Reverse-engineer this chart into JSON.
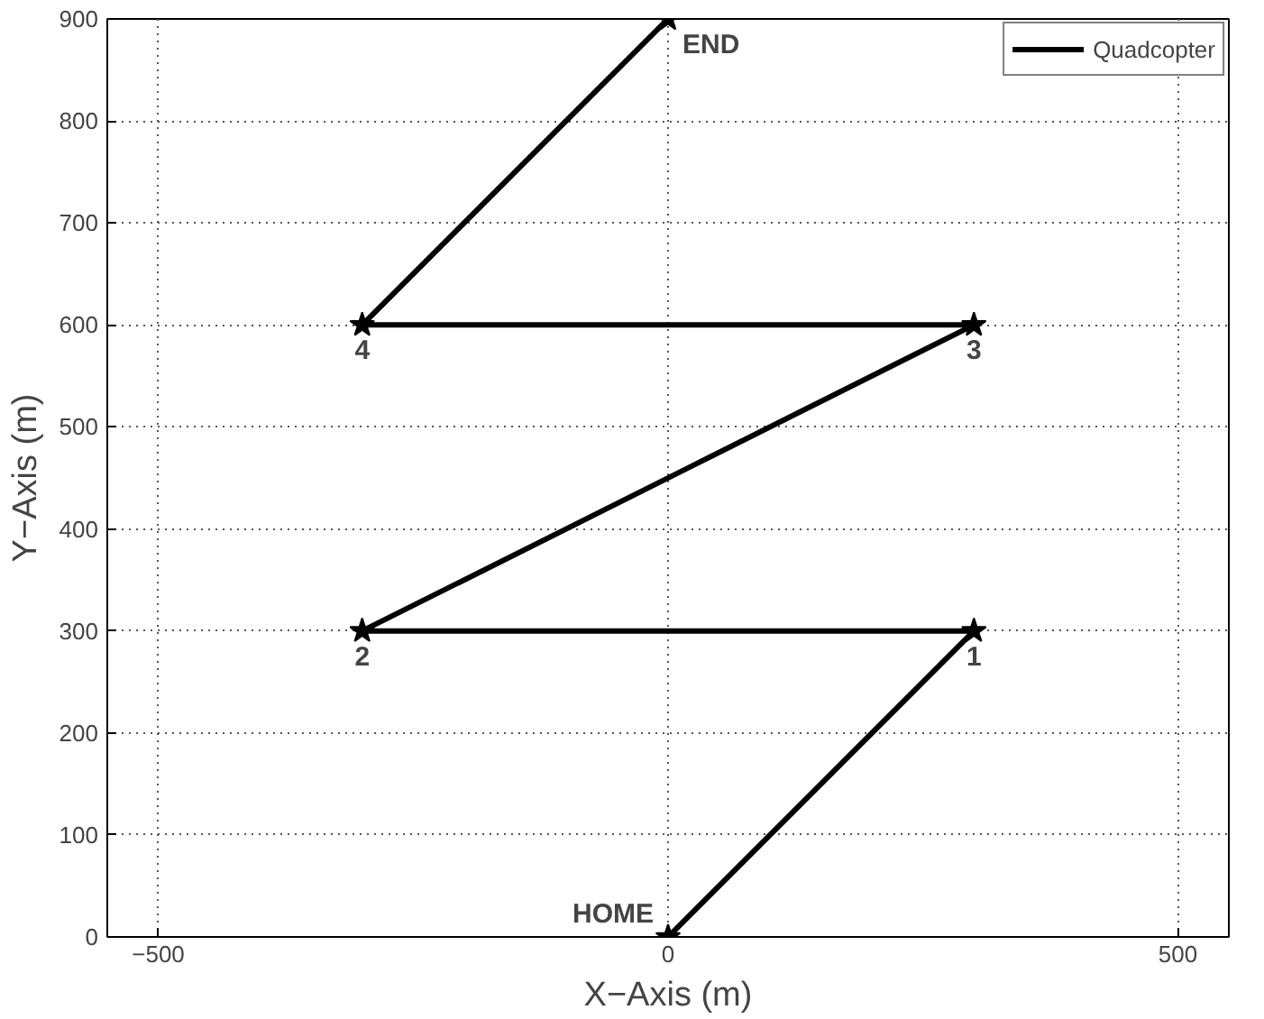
{
  "chart_data": {
    "type": "line",
    "xlabel": "X−Axis (m)",
    "ylabel": "Y−Axis (m)",
    "x": [
      0,
      300,
      -300,
      300,
      -300,
      0
    ],
    "series": [
      {
        "name": "Quadcopter",
        "color": "#000000",
        "values": [
          0,
          300,
          300,
          600,
          600,
          900
        ]
      }
    ],
    "xlim": [
      -550,
      550
    ],
    "xticks": [
      {
        "value": -500,
        "label": "−500"
      },
      0,
      500
    ],
    "ylim": [
      0,
      900
    ],
    "yticks": [
      0,
      100,
      200,
      300,
      400,
      500,
      600,
      700,
      800,
      900
    ],
    "grid": true,
    "legend": "top right",
    "marker": "star",
    "line_style": "solid",
    "annotations": [
      {
        "text": "HOME",
        "x": 0,
        "y": 0
      },
      {
        "text": "1",
        "x": 300,
        "y": 300
      },
      {
        "text": "2",
        "x": -300,
        "y": 300
      },
      {
        "text": "3",
        "x": 300,
        "y": 600
      },
      {
        "text": "4",
        "x": -300,
        "y": 600
      },
      {
        "text": "END",
        "x": 0,
        "y": 900
      }
    ]
  }
}
